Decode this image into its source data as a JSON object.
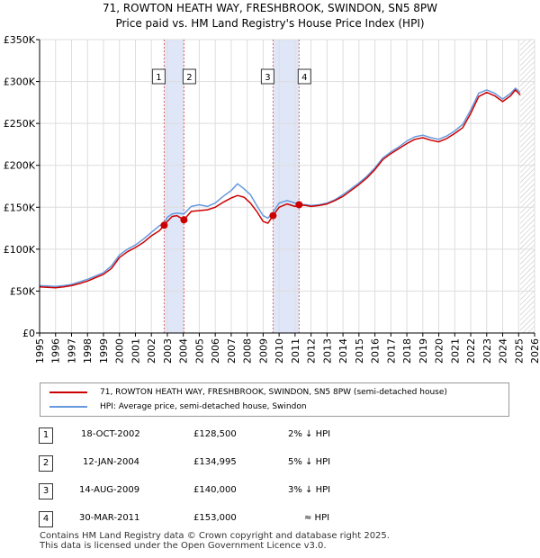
{
  "title_line1": "71, ROWTON HEATH WAY, FRESHBROOK, SWINDON, SN5 8PW",
  "title_line2": "Price paid vs. HM Land Registry's House Price Index (HPI)",
  "chart_data": {
    "type": "line",
    "xlim": [
      1995,
      2026
    ],
    "ylim": [
      0,
      350000
    ],
    "x_ticks": [
      "1995",
      "1996",
      "1997",
      "1998",
      "1999",
      "2000",
      "2001",
      "2002",
      "2003",
      "2004",
      "2005",
      "2006",
      "2007",
      "2008",
      "2009",
      "2010",
      "2011",
      "2012",
      "2013",
      "2014",
      "2015",
      "2016",
      "2017",
      "2018",
      "2019",
      "2020",
      "2021",
      "2022",
      "2023",
      "2024",
      "2025",
      "2026"
    ],
    "y_ticks": [
      {
        "value": 0,
        "label": "£0"
      },
      {
        "value": 50000,
        "label": "£50K"
      },
      {
        "value": 100000,
        "label": "£100K"
      },
      {
        "value": 150000,
        "label": "£150K"
      },
      {
        "value": 200000,
        "label": "£200K"
      },
      {
        "value": 250000,
        "label": "£250K"
      },
      {
        "value": 300000,
        "label": "£300K"
      },
      {
        "value": 350000,
        "label": "£350K"
      }
    ],
    "colors": {
      "property": "#cc0000",
      "hpi": "#6699dd",
      "shade": "#dfe6f7",
      "hatch": "#bbbbbb",
      "event_line": "#dd6666",
      "grid": "#dddddd"
    },
    "shaded_ranges": [
      [
        2002.8,
        2004.04
      ],
      [
        2009.62,
        2011.25
      ]
    ],
    "future_from": 2025.1,
    "series": [
      {
        "name": "71, ROWTON HEATH WAY, FRESHBROOK, SWINDON, SN5 8PW (semi-detached house)",
        "points": [
          [
            1995,
            55000
          ],
          [
            1995.5,
            54500
          ],
          [
            1996,
            54000
          ],
          [
            1996.5,
            55000
          ],
          [
            1997,
            56500
          ],
          [
            1997.5,
            59000
          ],
          [
            1998,
            62000
          ],
          [
            1998.5,
            66000
          ],
          [
            1999,
            70000
          ],
          [
            1999.5,
            77000
          ],
          [
            2000,
            90000
          ],
          [
            2000.5,
            97000
          ],
          [
            2001,
            102000
          ],
          [
            2001.5,
            108000
          ],
          [
            2002,
            116000
          ],
          [
            2002.5,
            122000
          ],
          [
            2002.8,
            128500
          ],
          [
            2003,
            133000
          ],
          [
            2003.3,
            139000
          ],
          [
            2003.6,
            140000
          ],
          [
            2004.04,
            134995
          ],
          [
            2004.5,
            145000
          ],
          [
            2005,
            146000
          ],
          [
            2005.5,
            147000
          ],
          [
            2006,
            150000
          ],
          [
            2006.5,
            156000
          ],
          [
            2007,
            161000
          ],
          [
            2007.4,
            164000
          ],
          [
            2007.8,
            162000
          ],
          [
            2008.2,
            155000
          ],
          [
            2008.6,
            145000
          ],
          [
            2009,
            133000
          ],
          [
            2009.3,
            131000
          ],
          [
            2009.62,
            140000
          ],
          [
            2010,
            150000
          ],
          [
            2010.5,
            154000
          ],
          [
            2011,
            151000
          ],
          [
            2011.25,
            153000
          ],
          [
            2011.7,
            152000
          ],
          [
            2012,
            151000
          ],
          [
            2012.5,
            152000
          ],
          [
            2013,
            154000
          ],
          [
            2013.5,
            158000
          ],
          [
            2014,
            163000
          ],
          [
            2014.5,
            170000
          ],
          [
            2015,
            177000
          ],
          [
            2015.5,
            185000
          ],
          [
            2016,
            195000
          ],
          [
            2016.5,
            207000
          ],
          [
            2017,
            214000
          ],
          [
            2017.5,
            220000
          ],
          [
            2018,
            226000
          ],
          [
            2018.5,
            231000
          ],
          [
            2019,
            233000
          ],
          [
            2019.5,
            230000
          ],
          [
            2020,
            228000
          ],
          [
            2020.5,
            232000
          ],
          [
            2021,
            238000
          ],
          [
            2021.5,
            245000
          ],
          [
            2022,
            262000
          ],
          [
            2022.5,
            282000
          ],
          [
            2023,
            287000
          ],
          [
            2023.5,
            283000
          ],
          [
            2024,
            276000
          ],
          [
            2024.5,
            283000
          ],
          [
            2024.8,
            290000
          ],
          [
            2025.1,
            284000
          ]
        ]
      },
      {
        "name": "HPI: Average price, semi-detached house, Swindon",
        "points": [
          [
            1995,
            56500
          ],
          [
            1995.5,
            56000
          ],
          [
            1996,
            55500
          ],
          [
            1996.5,
            56500
          ],
          [
            1997,
            58000
          ],
          [
            1997.5,
            61000
          ],
          [
            1998,
            64000
          ],
          [
            1998.5,
            68000
          ],
          [
            1999,
            72000
          ],
          [
            1999.5,
            80000
          ],
          [
            2000,
            93000
          ],
          [
            2000.5,
            100000
          ],
          [
            2001,
            105000
          ],
          [
            2001.5,
            112000
          ],
          [
            2002,
            120000
          ],
          [
            2002.5,
            128000
          ],
          [
            2002.8,
            131000
          ],
          [
            2003,
            138000
          ],
          [
            2003.3,
            142000
          ],
          [
            2003.6,
            143000
          ],
          [
            2004.04,
            142000
          ],
          [
            2004.5,
            151000
          ],
          [
            2005,
            153000
          ],
          [
            2005.5,
            151000
          ],
          [
            2006,
            155000
          ],
          [
            2006.5,
            163000
          ],
          [
            2007,
            170000
          ],
          [
            2007.4,
            178000
          ],
          [
            2007.8,
            172000
          ],
          [
            2008.2,
            165000
          ],
          [
            2008.6,
            152000
          ],
          [
            2009,
            140000
          ],
          [
            2009.3,
            137000
          ],
          [
            2009.62,
            144000
          ],
          [
            2010,
            155000
          ],
          [
            2010.5,
            158000
          ],
          [
            2011,
            155000
          ],
          [
            2011.25,
            153500
          ],
          [
            2011.7,
            153000
          ],
          [
            2012,
            152000
          ],
          [
            2012.5,
            153000
          ],
          [
            2013,
            155000
          ],
          [
            2013.5,
            159000
          ],
          [
            2014,
            165000
          ],
          [
            2014.5,
            172000
          ],
          [
            2015,
            179000
          ],
          [
            2015.5,
            187000
          ],
          [
            2016,
            197000
          ],
          [
            2016.5,
            209000
          ],
          [
            2017,
            216000
          ],
          [
            2017.5,
            222000
          ],
          [
            2018,
            229000
          ],
          [
            2018.5,
            234000
          ],
          [
            2019,
            236000
          ],
          [
            2019.5,
            233000
          ],
          [
            2020,
            231000
          ],
          [
            2020.5,
            235000
          ],
          [
            2021,
            241000
          ],
          [
            2021.5,
            249000
          ],
          [
            2022,
            266000
          ],
          [
            2022.5,
            286000
          ],
          [
            2023,
            290000
          ],
          [
            2023.5,
            286000
          ],
          [
            2024,
            279000
          ],
          [
            2024.5,
            286000
          ],
          [
            2024.8,
            292000
          ],
          [
            2025.1,
            287000
          ]
        ]
      }
    ],
    "sales": [
      {
        "label": "1",
        "x": 2002.8,
        "price": 128500
      },
      {
        "label": "2",
        "x": 2004.04,
        "price": 134995
      },
      {
        "label": "3",
        "x": 2009.62,
        "price": 140000
      },
      {
        "label": "4",
        "x": 2011.25,
        "price": 153000
      }
    ]
  },
  "legend": {
    "property_label": "71, ROWTON HEATH WAY, FRESHBROOK, SWINDON, SN5 8PW (semi-detached house)",
    "hpi_label": "HPI: Average price, semi-detached house, Swindon"
  },
  "transactions": [
    {
      "num": "1",
      "date": "18-OCT-2002",
      "price": "£128,500",
      "rel": "2% ↓ HPI"
    },
    {
      "num": "2",
      "date": "12-JAN-2004",
      "price": "£134,995",
      "rel": "5% ↓ HPI"
    },
    {
      "num": "3",
      "date": "14-AUG-2009",
      "price": "£140,000",
      "rel": "3% ↓ HPI"
    },
    {
      "num": "4",
      "date": "30-MAR-2011",
      "price": "£153,000",
      "rel": "≈ HPI"
    }
  ],
  "footer": {
    "line1": "Contains HM Land Registry data © Crown copyright and database right 2025.",
    "line2": "This data is licensed under the Open Government Licence v3.0."
  }
}
